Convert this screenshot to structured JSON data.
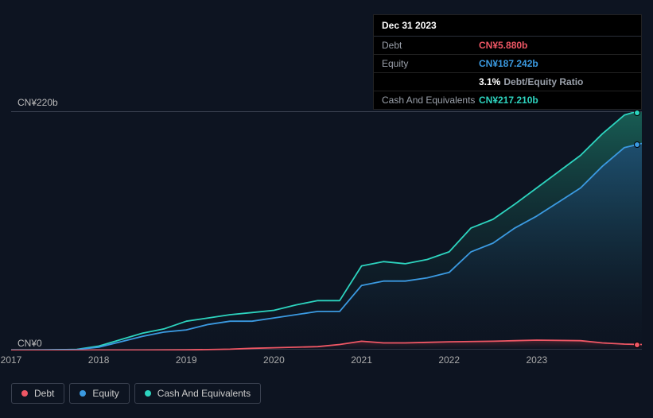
{
  "tooltip": {
    "date": "Dec 31 2023",
    "rows": [
      {
        "label": "Debt",
        "value": "CN¥5.880b",
        "cls": "v-debt"
      },
      {
        "label": "Equity",
        "value": "CN¥187.242b",
        "cls": "v-equity"
      }
    ],
    "ratio": {
      "pct": "3.1%",
      "label": "Debt/Equity Ratio"
    },
    "cash": {
      "label": "Cash And Equivalents",
      "value": "CN¥217.210b",
      "cls": "v-cash"
    }
  },
  "chart": {
    "type": "area",
    "background": "#0d1421",
    "grid_color": "#3a4150",
    "y_top_label": "CN¥220b",
    "y_bot_label": "CN¥0",
    "ymin": 0,
    "ymax": 220,
    "xmin": 2017,
    "xmax": 2024.2,
    "x_ticks": [
      2017,
      2018,
      2019,
      2020,
      2021,
      2022,
      2023
    ],
    "series": [
      {
        "name": "Cash And Equivalents",
        "color": "#2dd4bf",
        "fill_from": "#1a6b5e",
        "fill_to": "#0d1421",
        "points": [
          [
            2017.0,
            0.3
          ],
          [
            2017.25,
            0.4
          ],
          [
            2017.5,
            0.6
          ],
          [
            2017.75,
            1.0
          ],
          [
            2018.0,
            4
          ],
          [
            2018.25,
            10
          ],
          [
            2018.5,
            16
          ],
          [
            2018.75,
            20
          ],
          [
            2019.0,
            27
          ],
          [
            2019.25,
            30
          ],
          [
            2019.5,
            33
          ],
          [
            2019.75,
            35
          ],
          [
            2020.0,
            37
          ],
          [
            2020.25,
            42
          ],
          [
            2020.5,
            46
          ],
          [
            2020.75,
            46
          ],
          [
            2021.0,
            78
          ],
          [
            2021.25,
            82
          ],
          [
            2021.5,
            80
          ],
          [
            2021.75,
            84
          ],
          [
            2022.0,
            91
          ],
          [
            2022.25,
            113
          ],
          [
            2022.5,
            121
          ],
          [
            2022.75,
            135
          ],
          [
            2023.0,
            150
          ],
          [
            2023.25,
            165
          ],
          [
            2023.5,
            180
          ],
          [
            2023.75,
            200
          ],
          [
            2024.0,
            217.2
          ],
          [
            2024.2,
            222
          ]
        ]
      },
      {
        "name": "Equity",
        "color": "#3b9ae1",
        "fill_from": "#1f4e75",
        "fill_to": "#0d1421",
        "points": [
          [
            2017.0,
            0.2
          ],
          [
            2017.25,
            0.3
          ],
          [
            2017.5,
            0.5
          ],
          [
            2017.75,
            0.8
          ],
          [
            2018.0,
            3
          ],
          [
            2018.25,
            8
          ],
          [
            2018.5,
            13
          ],
          [
            2018.75,
            17
          ],
          [
            2019.0,
            19
          ],
          [
            2019.25,
            24
          ],
          [
            2019.5,
            27
          ],
          [
            2019.75,
            27
          ],
          [
            2020.0,
            30
          ],
          [
            2020.25,
            33
          ],
          [
            2020.5,
            36
          ],
          [
            2020.75,
            36
          ],
          [
            2021.0,
            60
          ],
          [
            2021.25,
            64
          ],
          [
            2021.5,
            64
          ],
          [
            2021.75,
            67
          ],
          [
            2022.0,
            72
          ],
          [
            2022.25,
            91
          ],
          [
            2022.5,
            99
          ],
          [
            2022.75,
            113
          ],
          [
            2023.0,
            124
          ],
          [
            2023.25,
            137
          ],
          [
            2023.5,
            150
          ],
          [
            2023.75,
            170
          ],
          [
            2024.0,
            187.2
          ],
          [
            2024.2,
            191
          ]
        ]
      },
      {
        "name": "Debt",
        "color": "#ef5765",
        "fill_from": "#5a2530",
        "fill_to": "#0d1421",
        "points": [
          [
            2017.0,
            0.05
          ],
          [
            2017.5,
            0.1
          ],
          [
            2018.0,
            0.2
          ],
          [
            2018.5,
            0.3
          ],
          [
            2019.0,
            0.5
          ],
          [
            2019.5,
            1.2
          ],
          [
            2019.75,
            2.0
          ],
          [
            2020.0,
            2.5
          ],
          [
            2020.5,
            3.5
          ],
          [
            2020.75,
            5.5
          ],
          [
            2021.0,
            8.5
          ],
          [
            2021.25,
            7
          ],
          [
            2021.5,
            7
          ],
          [
            2021.75,
            7.5
          ],
          [
            2022.0,
            8
          ],
          [
            2022.5,
            8.5
          ],
          [
            2022.75,
            9
          ],
          [
            2023.0,
            9.5
          ],
          [
            2023.5,
            9
          ],
          [
            2023.75,
            7
          ],
          [
            2024.0,
            5.88
          ],
          [
            2024.2,
            5.5
          ]
        ]
      }
    ],
    "markers": [
      {
        "series": "Cash And Equivalents",
        "x": 2024.15,
        "y": 219,
        "color": "#2dd4bf"
      },
      {
        "series": "Equity",
        "x": 2024.15,
        "y": 190,
        "color": "#3b9ae1"
      },
      {
        "series": "Debt",
        "x": 2024.15,
        "y": 5.5,
        "color": "#ef5765"
      }
    ]
  },
  "legend": [
    {
      "label": "Debt",
      "color": "#ef5765"
    },
    {
      "label": "Equity",
      "color": "#3b9ae1"
    },
    {
      "label": "Cash And Equivalents",
      "color": "#2dd4bf"
    }
  ]
}
